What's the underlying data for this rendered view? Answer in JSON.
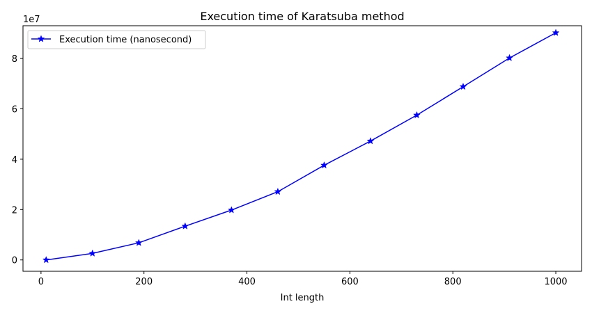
{
  "chart_data": {
    "type": "line",
    "title": "Execution time of Karatsuba method",
    "xlabel": "Int length",
    "ylabel": "",
    "y_offset_label": "1e7",
    "xlim": [
      -35,
      1050
    ],
    "ylim": [
      -0.45,
      9.3
    ],
    "x_ticks": [
      0,
      200,
      400,
      600,
      800,
      1000
    ],
    "y_ticks": [
      0,
      2,
      4,
      6,
      8
    ],
    "grid": false,
    "legend_position": "upper-left",
    "series": [
      {
        "name": "Execution time (nanosecond)",
        "color": "#0000ff",
        "marker": "star",
        "x": [
          10,
          100,
          190,
          280,
          370,
          460,
          550,
          640,
          730,
          820,
          910,
          1000
        ],
        "y": [
          0.0,
          0.26,
          0.68,
          1.34,
          1.98,
          2.71,
          3.76,
          4.72,
          5.75,
          6.88,
          8.02,
          9.02
        ]
      }
    ]
  }
}
